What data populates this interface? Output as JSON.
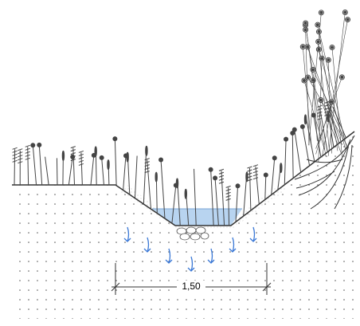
{
  "dimension": {
    "label": "1,50"
  }
}
